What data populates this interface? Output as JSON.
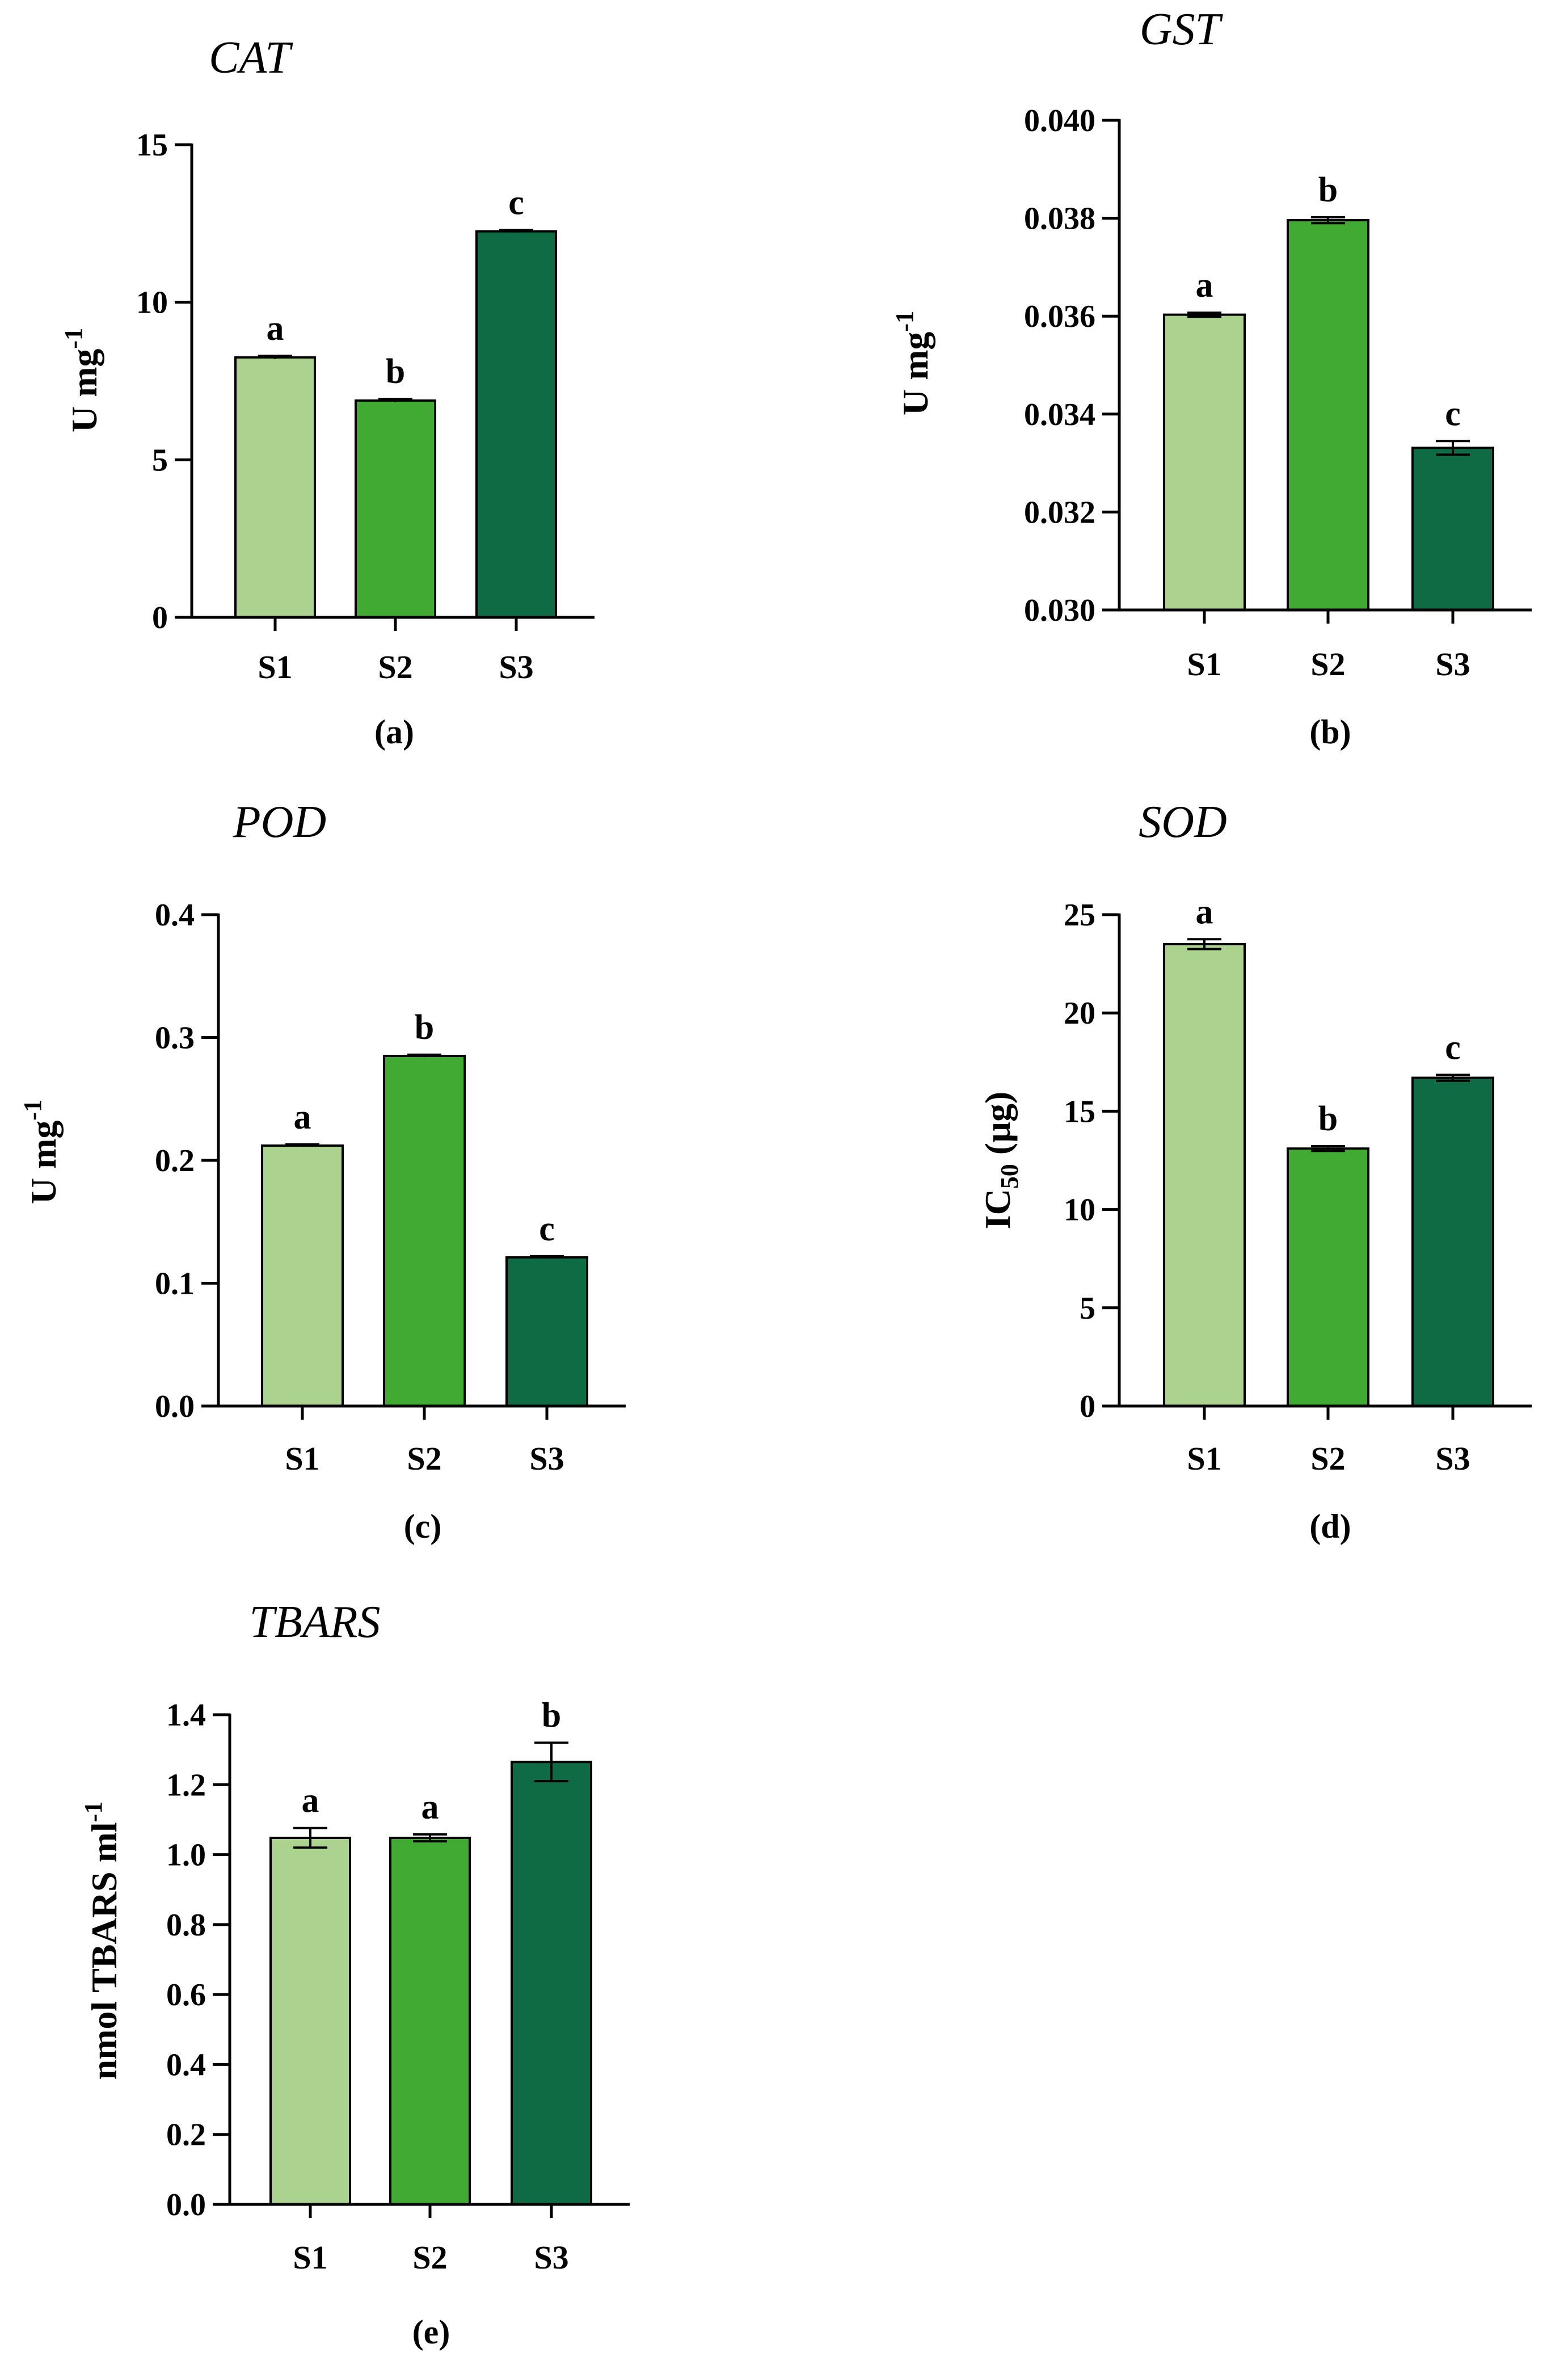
{
  "colors": {
    "s1": "#acd28f",
    "s2": "#41aa33",
    "s3": "#0f6b43",
    "axis": "#000000"
  },
  "chart_data": [
    {
      "type": "bar",
      "panel": "(a)",
      "title": "CAT",
      "ylabel": "U mg",
      "ylabel_sup": "-1",
      "ylabel_sub": "",
      "categories": [
        "S1",
        "S2",
        "S3"
      ],
      "values": [
        8.25,
        6.88,
        12.25
      ],
      "errors": [
        0.05,
        0.05,
        0.04
      ],
      "letters": [
        "a",
        "b",
        "c"
      ],
      "ylim": [
        0,
        15
      ],
      "yticks": [
        0,
        5,
        10,
        15
      ],
      "ytick_labels": [
        "0",
        "5",
        "10",
        "15"
      ]
    },
    {
      "type": "bar",
      "panel": "(b)",
      "title": "GST",
      "ylabel": "U mg",
      "ylabel_sup": "-1",
      "ylabel_sub": "",
      "categories": [
        "S1",
        "S2",
        "S3"
      ],
      "values": [
        0.03603,
        0.03796,
        0.03331
      ],
      "errors": [
        4e-05,
        6e-05,
        0.00014
      ],
      "letters": [
        "a",
        "b",
        "c"
      ],
      "ylim": [
        0.03,
        0.04
      ],
      "yticks": [
        0.03,
        0.032,
        0.034,
        0.036,
        0.038,
        0.04
      ],
      "ytick_labels": [
        "0.030",
        "0.032",
        "0.034",
        "0.036",
        "0.038",
        "0.040"
      ]
    },
    {
      "type": "bar",
      "panel": "(c)",
      "title": "POD",
      "ylabel": "U mg",
      "ylabel_sup": "-1",
      "ylabel_sub": "",
      "categories": [
        "S1",
        "S2",
        "S3"
      ],
      "values": [
        0.212,
        0.285,
        0.121
      ],
      "errors": [
        0.001,
        0.001,
        0.001
      ],
      "letters": [
        "a",
        "b",
        "c"
      ],
      "ylim": [
        0,
        0.4
      ],
      "yticks": [
        0,
        0.1,
        0.2,
        0.3,
        0.4
      ],
      "ytick_labels": [
        "0.0",
        "0.1",
        "0.2",
        "0.3",
        "0.4"
      ]
    },
    {
      "type": "bar",
      "panel": "(d)",
      "title": "SOD",
      "ylabel": "IC",
      "ylabel_sup": "",
      "ylabel_sub": "50",
      "ylabel_tail": " (µg)",
      "categories": [
        "S1",
        "S2",
        "S3"
      ],
      "values": [
        23.5,
        13.1,
        16.7
      ],
      "errors": [
        0.25,
        0.12,
        0.15
      ],
      "letters": [
        "a",
        "b",
        "c"
      ],
      "ylim": [
        0,
        25
      ],
      "yticks": [
        0,
        5,
        10,
        15,
        20,
        25
      ],
      "ytick_labels": [
        "0",
        "5",
        "10",
        "15",
        "20",
        "25"
      ]
    },
    {
      "type": "bar",
      "panel": "(e)",
      "title": "TBARS",
      "ylabel": "nmol TBARS ml",
      "ylabel_sup": "-1",
      "ylabel_sub": "",
      "categories": [
        "S1",
        "S2",
        "S3"
      ],
      "values": [
        1.048,
        1.048,
        1.265
      ],
      "errors": [
        0.028,
        0.01,
        0.055
      ],
      "letters": [
        "a",
        "a",
        "b"
      ],
      "ylim": [
        0,
        1.4
      ],
      "yticks": [
        0,
        0.2,
        0.4,
        0.6,
        0.8,
        1.0,
        1.2,
        1.4
      ],
      "ytick_labels": [
        "0.0",
        "0.2",
        "0.4",
        "0.6",
        "0.8",
        "1.0",
        "1.2",
        "1.4"
      ]
    }
  ]
}
